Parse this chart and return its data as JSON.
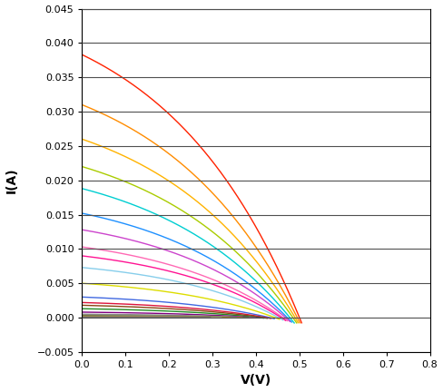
{
  "xlabel": "V(V)",
  "ylabel": "I(A)",
  "xlim": [
    0,
    0.8
  ],
  "ylim": [
    -0.005,
    0.045
  ],
  "xticks": [
    0,
    0.1,
    0.2,
    0.3,
    0.4,
    0.5,
    0.6,
    0.7,
    0.8
  ],
  "yticks": [
    -0.005,
    0,
    0.005,
    0.01,
    0.015,
    0.02,
    0.025,
    0.03,
    0.035,
    0.04,
    0.045
  ],
  "curves": [
    {
      "Isc": 0.0383,
      "Voc": 0.5,
      "color": "#FF2200",
      "n": 12.0
    },
    {
      "Isc": 0.031,
      "Voc": 0.495,
      "color": "#FF8C00",
      "n": 12.0
    },
    {
      "Isc": 0.026,
      "Voc": 0.49,
      "color": "#FFB300",
      "n": 12.0
    },
    {
      "Isc": 0.022,
      "Voc": 0.485,
      "color": "#AACC00",
      "n": 12.0
    },
    {
      "Isc": 0.0188,
      "Voc": 0.478,
      "color": "#00CED1",
      "n": 12.0
    },
    {
      "Isc": 0.0152,
      "Voc": 0.472,
      "color": "#1E90FF",
      "n": 11.5
    },
    {
      "Isc": 0.0128,
      "Voc": 0.468,
      "color": "#CC44CC",
      "n": 11.0
    },
    {
      "Isc": 0.0103,
      "Voc": 0.462,
      "color": "#FF69B4",
      "n": 11.0
    },
    {
      "Isc": 0.009,
      "Voc": 0.458,
      "color": "#FF1493",
      "n": 10.5
    },
    {
      "Isc": 0.0073,
      "Voc": 0.452,
      "color": "#87CEEB",
      "n": 10.0
    },
    {
      "Isc": 0.005,
      "Voc": 0.444,
      "color": "#DDDD00",
      "n": 10.0
    },
    {
      "Isc": 0.003,
      "Voc": 0.432,
      "color": "#4169E1",
      "n": 9.5
    },
    {
      "Isc": 0.0022,
      "Voc": 0.424,
      "color": "#DC143C",
      "n": 9.0
    },
    {
      "Isc": 0.0018,
      "Voc": 0.416,
      "color": "#8B4513",
      "n": 9.0
    },
    {
      "Isc": 0.0013,
      "Voc": 0.408,
      "color": "#228B22",
      "n": 8.5
    },
    {
      "Isc": 0.0008,
      "Voc": 0.398,
      "color": "#800080",
      "n": 8.0
    },
    {
      "Isc": 0.0005,
      "Voc": 0.388,
      "color": "#888888",
      "n": 7.5
    },
    {
      "Isc": 0.0003,
      "Voc": 0.372,
      "color": "#556B2F",
      "n": 7.0
    },
    {
      "Isc": 0.0002,
      "Voc": 0.358,
      "color": "#CD853F",
      "n": 6.5
    },
    {
      "Isc": 0.00015,
      "Voc": 0.345,
      "color": "#708090",
      "n": 6.0
    },
    {
      "Isc": 0.0001,
      "Voc": 0.33,
      "color": "#B8860B",
      "n": 5.5
    },
    {
      "Isc": 5e-05,
      "Voc": 0.31,
      "color": "#A9A9A9",
      "n": 5.0
    },
    {
      "Isc": 2.5e-05,
      "Voc": 0.285,
      "color": "#696969",
      "n": 4.5
    }
  ],
  "background_color": "#ffffff",
  "grid_color": "#505050",
  "figsize": [
    4.88,
    4.32
  ],
  "dpi": 100,
  "Vt": 0.02585
}
